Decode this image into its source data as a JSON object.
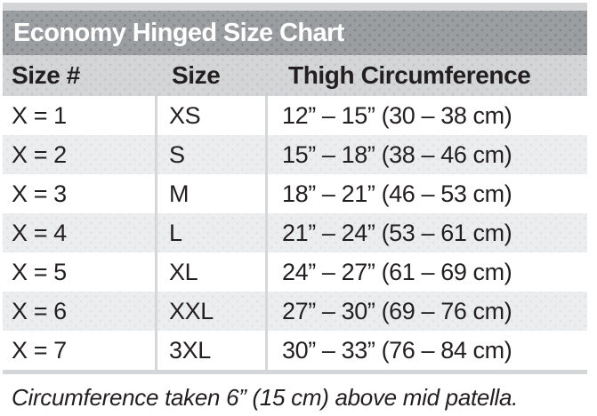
{
  "chart": {
    "title": "Economy Hinged Size Chart",
    "columns": {
      "size_num": "Size #",
      "size": "Size",
      "thigh": "Thigh Circumference"
    },
    "rows": [
      {
        "size_num": "X = 1",
        "size": "XS",
        "thigh": "12” – 15” (30 – 38 cm)"
      },
      {
        "size_num": "X = 2",
        "size": "S",
        "thigh": "15” – 18” (38 – 46 cm)"
      },
      {
        "size_num": "X = 3",
        "size": "M",
        "thigh": "18” – 21” (46 – 53 cm)"
      },
      {
        "size_num": "X = 4",
        "size": "L",
        "thigh": "21” – 24” (53 – 61 cm)"
      },
      {
        "size_num": "X = 5",
        "size": "XL",
        "thigh": "24” – 27” (61 – 69 cm)"
      },
      {
        "size_num": "X = 6",
        "size": "XXL",
        "thigh": "27” – 30” (69 – 76 cm)"
      },
      {
        "size_num": "X = 7",
        "size": "3XL",
        "thigh": "30” – 33” (76 – 84 cm)"
      }
    ],
    "footnote": "Circumference taken 6” (15 cm) above mid patella.",
    "colors": {
      "title_bar_bg": "#9b9ea0",
      "title_text": "#ffffff",
      "header_bg": "#d3d5d6",
      "stripe_row_bg": "#ebedee",
      "divider": "#d4d6d7",
      "body_text": "#231f20"
    }
  }
}
